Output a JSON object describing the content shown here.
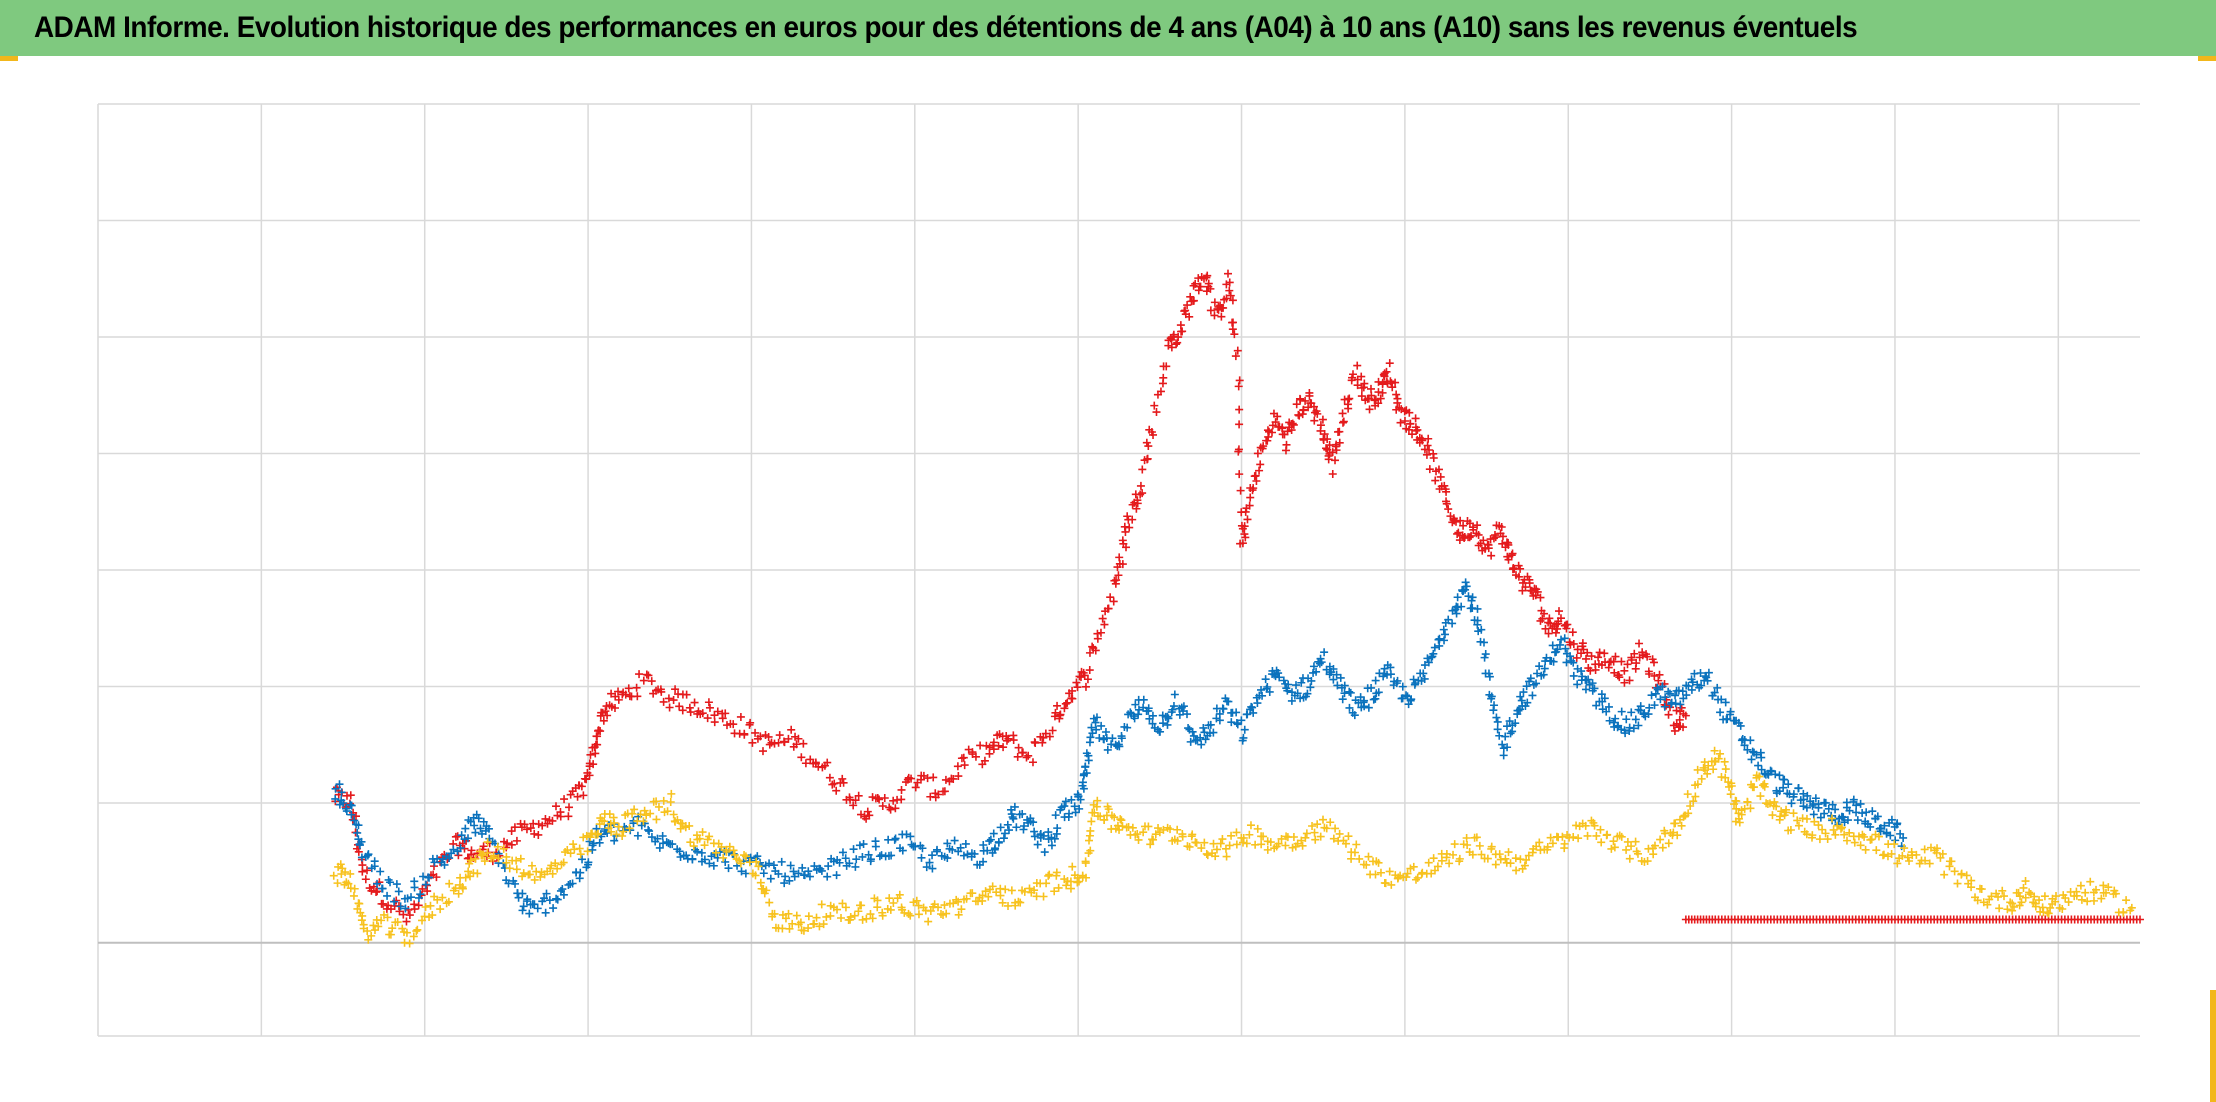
{
  "title": "ADAM Informe. Evolution historique des performances en euros pour des détentions de 4 ans (A04) à 10 ans (A10) sans les revenus éventuels",
  "colors": {
    "title_bg": "#7fc97f",
    "grid": "#d9d9d9",
    "zero_line": "#bfbfbf",
    "corner_accent": "#f2b71b"
  },
  "chart_data": {
    "type": "scatter",
    "marker": "+",
    "title": "ADAM Informe. Evolution historique des performances en euros pour des détentions de 4 ans (A04) à 10 ans (A10) sans les revenus éventuels",
    "xlabel": "",
    "ylabel": "",
    "tick_labels_visible": false,
    "legend": "none",
    "grid": true,
    "xlim": [
      0,
      12.5
    ],
    "ylim": [
      -0.8,
      7.2
    ],
    "x_gridlines": 12,
    "y_gridlines": [
      -0.8,
      0,
      1.2,
      2.2,
      3.2,
      4.2,
      5.2,
      6.2,
      7.2
    ],
    "series": [
      {
        "color": "#e41a1c",
        "points": [
          [
            1.45,
            1.25
          ],
          [
            1.55,
            1.2
          ],
          [
            1.62,
            0.6
          ],
          [
            1.75,
            0.4
          ],
          [
            1.9,
            0.2
          ],
          [
            2.05,
            0.55
          ],
          [
            2.2,
            0.85
          ],
          [
            2.3,
            0.75
          ],
          [
            2.45,
            0.8
          ],
          [
            2.6,
            0.95
          ],
          [
            2.75,
            1.05
          ],
          [
            2.9,
            1.2
          ],
          [
            3.0,
            1.4
          ],
          [
            3.05,
            1.75
          ],
          [
            3.1,
            2.0
          ],
          [
            3.2,
            2.1
          ],
          [
            3.35,
            2.25
          ],
          [
            3.5,
            2.1
          ],
          [
            3.65,
            2.05
          ],
          [
            3.8,
            1.95
          ],
          [
            3.95,
            1.85
          ],
          [
            4.1,
            1.7
          ],
          [
            4.25,
            1.75
          ],
          [
            4.4,
            1.55
          ],
          [
            4.55,
            1.35
          ],
          [
            4.7,
            1.15
          ],
          [
            4.85,
            1.2
          ],
          [
            5.0,
            1.4
          ],
          [
            5.15,
            1.3
          ],
          [
            5.3,
            1.55
          ],
          [
            5.45,
            1.65
          ],
          [
            5.55,
            1.75
          ],
          [
            5.7,
            1.6
          ],
          [
            5.85,
            1.9
          ],
          [
            5.95,
            2.15
          ],
          [
            6.05,
            2.3
          ],
          [
            6.15,
            2.75
          ],
          [
            6.25,
            3.15
          ],
          [
            6.3,
            3.6
          ],
          [
            6.38,
            3.9
          ],
          [
            6.45,
            4.4
          ],
          [
            6.55,
            5.1
          ],
          [
            6.62,
            5.25
          ],
          [
            6.7,
            5.55
          ],
          [
            6.78,
            5.75
          ],
          [
            6.85,
            5.35
          ],
          [
            6.92,
            5.7
          ],
          [
            6.98,
            4.9
          ],
          [
            7.0,
            3.4
          ],
          [
            7.05,
            3.8
          ],
          [
            7.12,
            4.2
          ],
          [
            7.2,
            4.5
          ],
          [
            7.28,
            4.3
          ],
          [
            7.35,
            4.6
          ],
          [
            7.42,
            4.65
          ],
          [
            7.5,
            4.4
          ],
          [
            7.55,
            4.1
          ],
          [
            7.62,
            4.5
          ],
          [
            7.7,
            4.9
          ],
          [
            7.78,
            4.65
          ],
          [
            7.85,
            4.75
          ],
          [
            7.9,
            4.9
          ],
          [
            7.98,
            4.55
          ],
          [
            8.05,
            4.45
          ],
          [
            8.12,
            4.3
          ],
          [
            8.2,
            4.0
          ],
          [
            8.28,
            3.7
          ],
          [
            8.35,
            3.5
          ],
          [
            8.42,
            3.6
          ],
          [
            8.5,
            3.35
          ],
          [
            8.58,
            3.55
          ],
          [
            8.65,
            3.3
          ],
          [
            8.72,
            3.1
          ],
          [
            8.8,
            3.0
          ],
          [
            8.88,
            2.7
          ],
          [
            8.95,
            2.8
          ],
          [
            9.05,
            2.55
          ],
          [
            9.15,
            2.4
          ],
          [
            9.25,
            2.45
          ],
          [
            9.35,
            2.3
          ],
          [
            9.45,
            2.5
          ],
          [
            9.55,
            2.25
          ],
          [
            9.65,
            1.9
          ],
          [
            9.72,
            1.95
          ]
        ]
      },
      {
        "color": "#e41a1c",
        "points": [
          [
            9.72,
            0.2
          ],
          [
            9.9,
            0.2
          ],
          [
            10.1,
            0.2
          ],
          [
            10.3,
            0.2
          ],
          [
            10.5,
            0.2
          ],
          [
            10.7,
            0.2
          ],
          [
            10.9,
            0.2
          ],
          [
            11.1,
            0.2
          ],
          [
            11.3,
            0.2
          ],
          [
            11.5,
            0.2
          ],
          [
            11.7,
            0.2
          ],
          [
            11.9,
            0.2
          ],
          [
            12.1,
            0.2
          ],
          [
            12.3,
            0.2
          ],
          [
            12.5,
            0.2
          ]
        ]
      },
      {
        "color": "#0a72bd",
        "points": [
          [
            1.45,
            1.35
          ],
          [
            1.55,
            1.1
          ],
          [
            1.62,
            0.8
          ],
          [
            1.75,
            0.5
          ],
          [
            1.9,
            0.35
          ],
          [
            2.05,
            0.65
          ],
          [
            2.2,
            0.8
          ],
          [
            2.3,
            1.05
          ],
          [
            2.4,
            0.9
          ],
          [
            2.55,
            0.45
          ],
          [
            2.65,
            0.25
          ],
          [
            2.8,
            0.4
          ],
          [
            2.95,
            0.6
          ],
          [
            3.05,
            0.9
          ],
          [
            3.15,
            0.95
          ],
          [
            3.3,
            1.0
          ],
          [
            3.45,
            0.85
          ],
          [
            3.6,
            0.8
          ],
          [
            3.75,
            0.75
          ],
          [
            3.9,
            0.7
          ],
          [
            4.05,
            0.65
          ],
          [
            4.2,
            0.6
          ],
          [
            4.35,
            0.55
          ],
          [
            4.5,
            0.65
          ],
          [
            4.65,
            0.75
          ],
          [
            4.8,
            0.8
          ],
          [
            4.95,
            0.85
          ],
          [
            5.1,
            0.7
          ],
          [
            5.25,
            0.8
          ],
          [
            5.4,
            0.75
          ],
          [
            5.5,
            0.9
          ],
          [
            5.6,
            1.1
          ],
          [
            5.7,
            1.0
          ],
          [
            5.8,
            0.85
          ],
          [
            5.9,
            1.1
          ],
          [
            6.0,
            1.2
          ],
          [
            6.05,
            1.45
          ],
          [
            6.1,
            1.9
          ],
          [
            6.2,
            1.65
          ],
          [
            6.3,
            1.9
          ],
          [
            6.4,
            2.05
          ],
          [
            6.5,
            1.85
          ],
          [
            6.6,
            2.1
          ],
          [
            6.7,
            1.75
          ],
          [
            6.8,
            1.8
          ],
          [
            6.9,
            2.05
          ],
          [
            7.0,
            1.8
          ],
          [
            7.1,
            2.1
          ],
          [
            7.2,
            2.3
          ],
          [
            7.3,
            2.15
          ],
          [
            7.4,
            2.2
          ],
          [
            7.5,
            2.45
          ],
          [
            7.6,
            2.2
          ],
          [
            7.7,
            2.0
          ],
          [
            7.8,
            2.15
          ],
          [
            7.9,
            2.3
          ],
          [
            8.0,
            2.1
          ],
          [
            8.1,
            2.25
          ],
          [
            8.2,
            2.55
          ],
          [
            8.3,
            2.9
          ],
          [
            8.38,
            3.05
          ],
          [
            8.45,
            2.75
          ],
          [
            8.52,
            2.15
          ],
          [
            8.6,
            1.65
          ],
          [
            8.68,
            2.0
          ],
          [
            8.75,
            2.15
          ],
          [
            8.85,
            2.35
          ],
          [
            8.95,
            2.6
          ],
          [
            9.05,
            2.3
          ],
          [
            9.15,
            2.15
          ],
          [
            9.25,
            2.0
          ],
          [
            9.35,
            1.85
          ],
          [
            9.45,
            1.95
          ],
          [
            9.55,
            2.15
          ],
          [
            9.65,
            2.05
          ],
          [
            9.75,
            2.2
          ],
          [
            9.85,
            2.3
          ],
          [
            9.95,
            2.0
          ],
          [
            10.05,
            1.8
          ],
          [
            10.15,
            1.6
          ],
          [
            10.25,
            1.4
          ],
          [
            10.35,
            1.3
          ],
          [
            10.45,
            1.2
          ],
          [
            10.55,
            1.15
          ],
          [
            10.65,
            1.1
          ],
          [
            10.75,
            1.15
          ],
          [
            10.85,
            1.05
          ],
          [
            10.95,
            1.0
          ],
          [
            11.05,
            0.9
          ]
        ]
      },
      {
        "color": "#f7c21e",
        "points": [
          [
            1.45,
            0.6
          ],
          [
            1.55,
            0.55
          ],
          [
            1.62,
            0.1
          ],
          [
            1.75,
            0.15
          ],
          [
            1.9,
            0.05
          ],
          [
            2.05,
            0.3
          ],
          [
            2.2,
            0.5
          ],
          [
            2.3,
            0.65
          ],
          [
            2.4,
            0.8
          ],
          [
            2.55,
            0.7
          ],
          [
            2.7,
            0.55
          ],
          [
            2.85,
            0.7
          ],
          [
            3.0,
            0.85
          ],
          [
            3.1,
            1.05
          ],
          [
            3.2,
            1.0
          ],
          [
            3.35,
            1.1
          ],
          [
            3.5,
            1.2
          ],
          [
            3.6,
            0.95
          ],
          [
            3.75,
            0.85
          ],
          [
            3.9,
            0.75
          ],
          [
            4.05,
            0.6
          ],
          [
            4.15,
            0.2
          ],
          [
            4.3,
            0.15
          ],
          [
            4.45,
            0.25
          ],
          [
            4.6,
            0.25
          ],
          [
            4.75,
            0.3
          ],
          [
            4.9,
            0.35
          ],
          [
            5.05,
            0.25
          ],
          [
            5.2,
            0.3
          ],
          [
            5.35,
            0.35
          ],
          [
            5.5,
            0.45
          ],
          [
            5.65,
            0.35
          ],
          [
            5.8,
            0.5
          ],
          [
            5.95,
            0.55
          ],
          [
            6.05,
            0.65
          ],
          [
            6.1,
            1.2
          ],
          [
            6.2,
            1.05
          ],
          [
            6.3,
            1.0
          ],
          [
            6.45,
            0.9
          ],
          [
            6.6,
            0.95
          ],
          [
            6.75,
            0.85
          ],
          [
            6.9,
            0.8
          ],
          [
            7.05,
            0.95
          ],
          [
            7.2,
            0.85
          ],
          [
            7.35,
            0.9
          ],
          [
            7.5,
            1.0
          ],
          [
            7.65,
            0.85
          ],
          [
            7.8,
            0.65
          ],
          [
            7.95,
            0.55
          ],
          [
            8.1,
            0.6
          ],
          [
            8.25,
            0.7
          ],
          [
            8.4,
            0.85
          ],
          [
            8.55,
            0.75
          ],
          [
            8.7,
            0.7
          ],
          [
            8.85,
            0.8
          ],
          [
            9.0,
            0.9
          ],
          [
            9.15,
            1.0
          ],
          [
            9.3,
            0.85
          ],
          [
            9.45,
            0.75
          ],
          [
            9.6,
            0.9
          ],
          [
            9.7,
            1.05
          ],
          [
            9.8,
            1.45
          ],
          [
            9.9,
            1.6
          ],
          [
            10.0,
            1.35
          ],
          [
            10.05,
            1.0
          ],
          [
            10.15,
            1.4
          ],
          [
            10.25,
            1.15
          ],
          [
            10.35,
            1.05
          ],
          [
            10.5,
            0.95
          ],
          [
            10.65,
            1.0
          ],
          [
            10.8,
            0.9
          ],
          [
            10.95,
            0.8
          ],
          [
            11.1,
            0.7
          ],
          [
            11.25,
            0.75
          ],
          [
            11.4,
            0.55
          ],
          [
            11.55,
            0.4
          ],
          [
            11.7,
            0.35
          ],
          [
            11.8,
            0.45
          ],
          [
            11.9,
            0.3
          ],
          [
            12.0,
            0.35
          ],
          [
            12.15,
            0.45
          ],
          [
            12.3,
            0.4
          ],
          [
            12.45,
            0.3
          ]
        ]
      }
    ]
  }
}
